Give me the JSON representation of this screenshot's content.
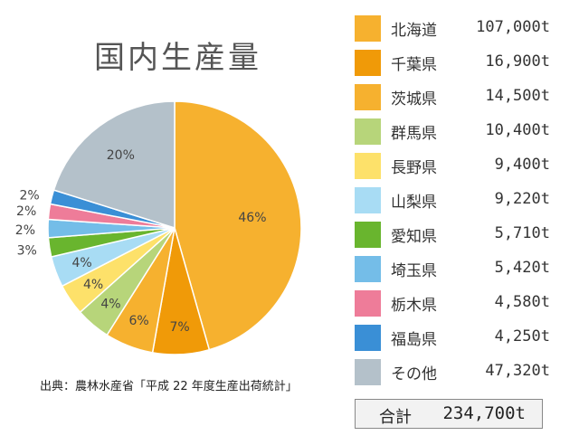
{
  "title": "国内生産量",
  "source": "出典：農林水産省「平成 22 年度生産出荷統計」",
  "legend": [
    {
      "name": "北海道",
      "value": "107,000t",
      "color": "#F6B12F"
    },
    {
      "name": "千葉県",
      "value": "16,900t",
      "color": "#F09A08"
    },
    {
      "name": "茨城県",
      "value": "14,500t",
      "color": "#F6B12F"
    },
    {
      "name": "群馬県",
      "value": "10,400t",
      "color": "#B7D57A"
    },
    {
      "name": "長野県",
      "value": "9,400t",
      "color": "#FDE16A"
    },
    {
      "name": "山梨県",
      "value": "9,220t",
      "color": "#A8DCF4"
    },
    {
      "name": "愛知県",
      "value": "5,710t",
      "color": "#69B52E"
    },
    {
      "name": "埼玉県",
      "value": "5,420t",
      "color": "#74BDE8"
    },
    {
      "name": "栃木県",
      "value": "4,580t",
      "color": "#EE7C99"
    },
    {
      "name": "福島県",
      "value": "4,250t",
      "color": "#3A8FD6"
    },
    {
      "name": "その他",
      "value": "47,320t",
      "color": "#B4C1CA"
    }
  ],
  "total": {
    "label": "合計",
    "value": "234,700t"
  },
  "chart_data": {
    "type": "pie",
    "title": "国内生産量",
    "categories": [
      "北海道",
      "千葉県",
      "茨城県",
      "群馬県",
      "長野県",
      "山梨県",
      "愛知県",
      "埼玉県",
      "栃木県",
      "福島県",
      "その他"
    ],
    "values": [
      107000,
      16900,
      14500,
      10400,
      9400,
      9220,
      5710,
      5420,
      4580,
      4250,
      47320
    ],
    "percent_labels": [
      "46%",
      "7%",
      "6%",
      "4%",
      "4%",
      "4%",
      "3%",
      "2%",
      "2%",
      "2%",
      "20%"
    ],
    "colors": [
      "#F6B12F",
      "#F09A08",
      "#F6B12F",
      "#B7D57A",
      "#FDE16A",
      "#A8DCF4",
      "#69B52E",
      "#74BDE8",
      "#EE7C99",
      "#3A8FD6",
      "#B4C1CA"
    ],
    "total": 234700,
    "legend_position": "right"
  }
}
